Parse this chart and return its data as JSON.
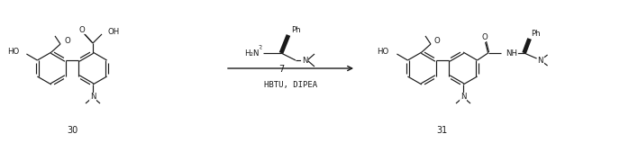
{
  "bg_color": "#ffffff",
  "line_color": "#1a1a1a",
  "fig_width": 6.98,
  "fig_height": 1.59,
  "dpi": 100,
  "compound30_label": "30",
  "compound31_label": "31",
  "compound7_label": "7",
  "reagents_label": "HBTU, DIPEA",
  "font_family": "DejaVu Sans",
  "font_size_labels": 7.0,
  "font_size_atoms": 6.2
}
